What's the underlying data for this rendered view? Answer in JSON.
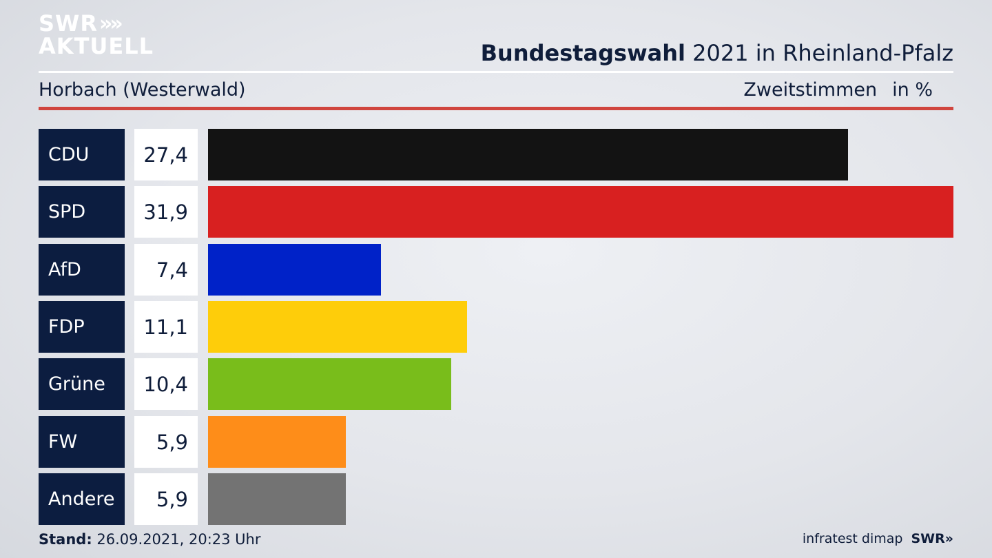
{
  "header": {
    "logo_line1": "SWR",
    "logo_chevrons": "»",
    "logo_line2": "AKTUELL",
    "title_bold": "Bundestagswahl",
    "title_rest": " 2021 in Rheinland-Pfalz",
    "subtitle": "Horbach (Westerwald)",
    "measure": "Zweitstimmen",
    "unit": "in %"
  },
  "chart_data": {
    "type": "bar",
    "orientation": "horizontal",
    "categories": [
      "CDU",
      "SPD",
      "AfD",
      "FDP",
      "Grüne",
      "FW",
      "Andere"
    ],
    "values": [
      27.4,
      31.9,
      7.4,
      11.1,
      10.4,
      5.9,
      5.9
    ],
    "value_labels": [
      "27,4",
      "31,9",
      "7,4",
      "11,1",
      "10,4",
      "5,9",
      "5,9"
    ],
    "colors": [
      "#131313",
      "#d82020",
      "#0022c8",
      "#fecd0a",
      "#79bd1b",
      "#fe8d19",
      "#737373"
    ],
    "title": "Bundestagswahl 2021 in Rheinland-Pfalz",
    "xlabel": "",
    "ylabel": "",
    "xlim": [
      0,
      31.9
    ],
    "grid": false
  },
  "colors": {
    "party_label_bg": "#0c1d40",
    "accent_rule": "#d0453e"
  },
  "footer": {
    "stand_label": "Stand:",
    "stand_value": " 26.09.2021, 20:23 Uhr",
    "source": "infratest dimap",
    "brand": "SWR»"
  }
}
